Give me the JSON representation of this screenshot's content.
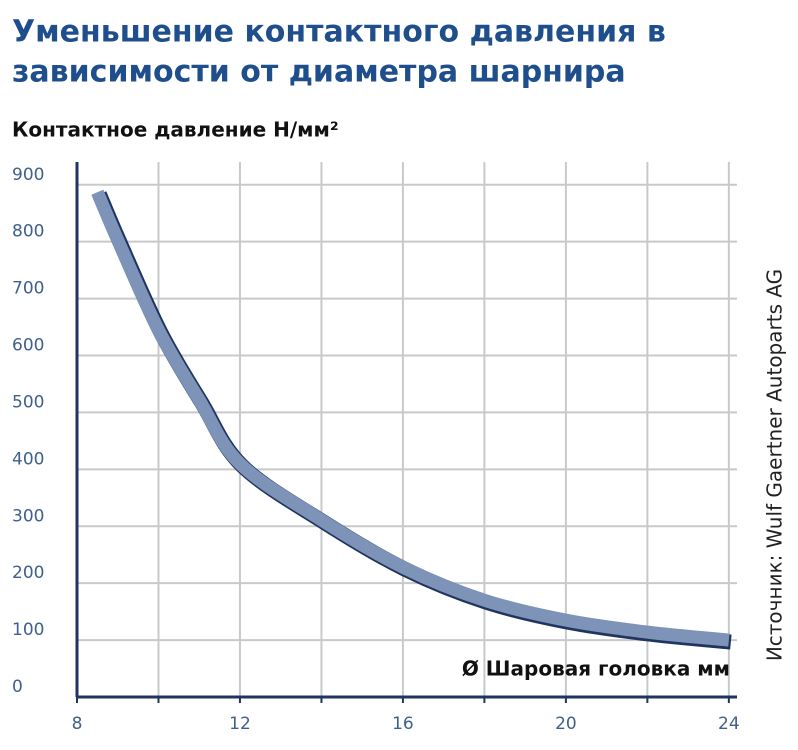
{
  "chart_data": {
    "type": "line",
    "title_lines": [
      "Уменьшение контактного давления в",
      "зависимости от диаметра шарнира"
    ],
    "y_label": "Контактное давление Н/мм²",
    "x_label": "Ø Шаровая головка мм",
    "source": "Источник: Wulf Gaertner Autoparts AG",
    "x": [
      8.5,
      9,
      10,
      11,
      12,
      14,
      16,
      18,
      20,
      22,
      24
    ],
    "series": [
      {
        "name": "Контактное давление",
        "color": "#7d93b8",
        "outline": "#1f3560",
        "values": [
          887,
          803,
          645,
          522,
          410,
          311,
          228,
          170,
          135,
          114,
          100
        ]
      }
    ],
    "xlim": [
      8,
      24.2
    ],
    "ylim": [
      0,
      940
    ],
    "xticks": [
      8,
      12,
      16,
      20,
      24
    ],
    "x_minor_ticks": [
      10,
      14,
      18,
      22
    ],
    "yticks": [
      0,
      100,
      200,
      300,
      400,
      500,
      600,
      700,
      800,
      900
    ],
    "grid": true
  }
}
